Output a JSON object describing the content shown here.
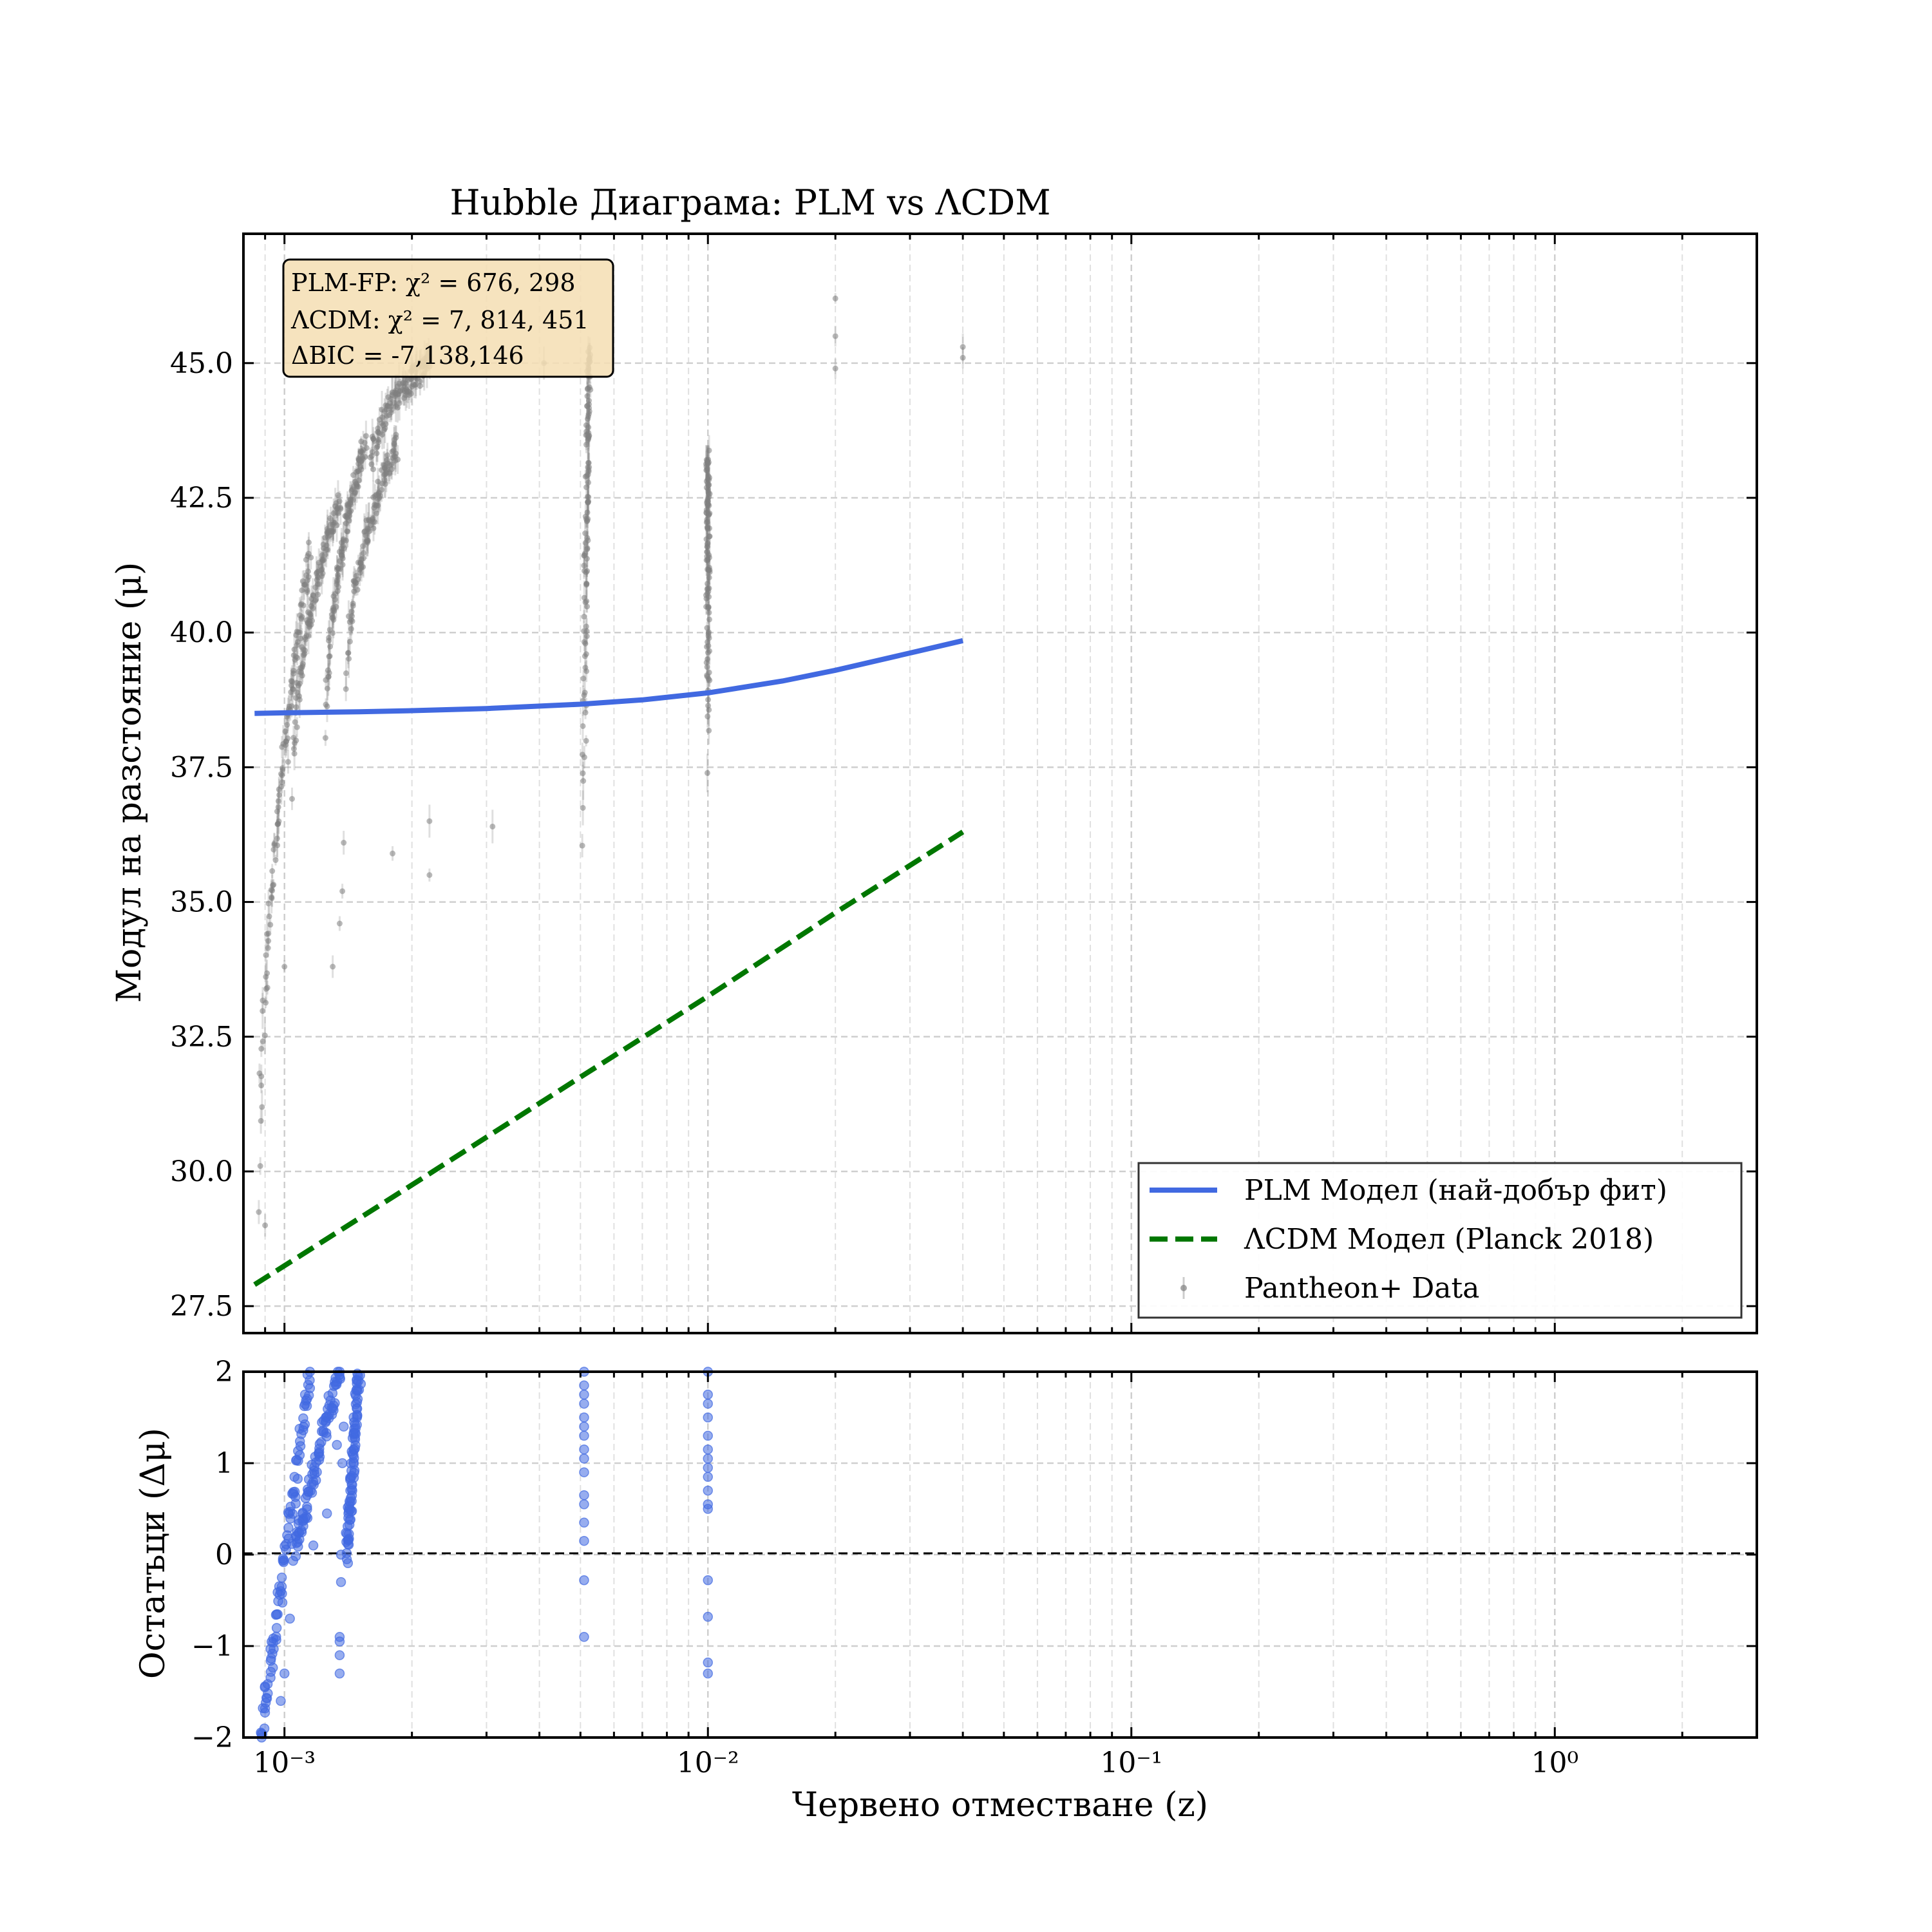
{
  "figure": {
    "title": "Hubble Диаграма: PLM vs ΛCDM",
    "stats_box": {
      "lines": [
        "PLM-FP: χ² = 676, 298",
        "ΛCDM: χ² = 7, 814, 451",
        "ΔBIC = -7,138,146"
      ]
    },
    "legend": {
      "placement": "lower-right",
      "entries": [
        "PLM Модел (най-добър фит)",
        "ΛCDM Модел (Planck 2018)",
        "Pantheon+ Data"
      ]
    }
  },
  "colors": {
    "plm": "#4169E1",
    "lcdm": "#007700",
    "data": "#808080",
    "residuals": "#4169E1",
    "stats_box_bg": "#F5DEB3"
  },
  "chart_data": [
    {
      "type": "line",
      "title": "Hubble Диаграма: PLM vs ΛCDM",
      "xlabel": "Червено отместване (z)",
      "ylabel": "Модул на разстояние (μ)",
      "xscale": "log",
      "xlim": [
        0.0008,
        3.0
      ],
      "ylim": [
        27.0,
        47.4
      ],
      "yticks": [
        "27.5",
        "30.0",
        "32.5",
        "35.0",
        "37.5",
        "40.0",
        "42.5",
        "45.0"
      ],
      "grid": true,
      "series": [
        {
          "name": "PLM Модел (най-добър фит)",
          "style": "solid",
          "x": [
            0.00085,
            0.001,
            0.0015,
            0.002,
            0.003,
            0.005,
            0.007,
            0.01,
            0.015,
            0.02,
            0.03,
            0.04
          ],
          "y": [
            38.5,
            38.51,
            38.53,
            38.55,
            38.59,
            38.67,
            38.75,
            38.88,
            39.1,
            39.3,
            39.62,
            39.85
          ]
        },
        {
          "name": "ΛCDM Модел (Planck 2018)",
          "style": "dashed",
          "x": [
            0.00085,
            0.001,
            0.002,
            0.005,
            0.01,
            0.02,
            0.04
          ],
          "y": [
            27.9,
            28.25,
            29.75,
            31.75,
            33.25,
            34.8,
            36.3
          ]
        },
        {
          "name": "Pantheon+ Data",
          "style": "errorbar-points",
          "clusters": [
            {
              "x_from": 0.00087,
              "x_to": 0.00115,
              "y_from": 29.0,
              "y_to": 41.5
            },
            {
              "x_from": 0.00105,
              "x_to": 0.00135,
              "y_from": 37.0,
              "y_to": 42.5
            },
            {
              "x_from": 0.00125,
              "x_to": 0.00155,
              "y_from": 38.0,
              "y_to": 43.5
            },
            {
              "x_from": 0.0014,
              "x_to": 0.00185,
              "y_from": 39.0,
              "y_to": 43.5
            },
            {
              "x_from": 0.0016,
              "x_to": 0.0022,
              "y_from": 43.0,
              "y_to": 45.0
            },
            {
              "x_from": 0.0051,
              "x_to": 0.00525,
              "y_from": 35.8,
              "y_to": 45.3
            },
            {
              "x_from": 0.01,
              "x_to": 0.01,
              "y_from": 37.5,
              "y_to": 43.3
            }
          ],
          "extra_points": [
            {
              "x": 0.0009,
              "y": 29.0
            },
            {
              "x": 0.001,
              "y": 33.8
            },
            {
              "x": 0.00102,
              "y": 37.6
            },
            {
              "x": 0.0013,
              "y": 33.8
            },
            {
              "x": 0.00135,
              "y": 34.6
            },
            {
              "x": 0.00137,
              "y": 35.2
            },
            {
              "x": 0.00138,
              "y": 36.1
            },
            {
              "x": 0.0018,
              "y": 35.9
            },
            {
              "x": 0.0022,
              "y": 36.5
            },
            {
              "x": 0.0022,
              "y": 35.5
            },
            {
              "x": 0.0031,
              "y": 36.4
            },
            {
              "x": 0.0041,
              "y": 45.0
            },
            {
              "x": 0.02,
              "y": 46.2
            },
            {
              "x": 0.02,
              "y": 45.5
            },
            {
              "x": 0.02,
              "y": 44.9
            },
            {
              "x": 0.04,
              "y": 45.3
            },
            {
              "x": 0.04,
              "y": 45.1
            }
          ]
        }
      ]
    },
    {
      "type": "scatter",
      "xlabel": "Червено отместване (z)",
      "ylabel": "Остатъци (Δμ)",
      "xscale": "log",
      "xlim": [
        0.0008,
        3.0
      ],
      "ylim": [
        -2.0,
        2.0
      ],
      "yticks": [
        "−2",
        "−1",
        "0",
        "1",
        "2"
      ],
      "xticks": [
        "10⁻³",
        "10⁻²",
        "10⁻¹",
        "10⁰"
      ],
      "reference_line": {
        "y": 0,
        "style": "dashed"
      },
      "grid": true,
      "series": [
        {
          "name": "residuals",
          "clusters": [
            {
              "x_from": 0.00088,
              "x_to": 0.00115,
              "y_from": -2.0,
              "y_to": 2.0
            },
            {
              "x_from": 0.00105,
              "x_to": 0.00135,
              "y_from": 0.0,
              "y_to": 2.0
            },
            {
              "x_from": 0.0014,
              "x_to": 0.0015,
              "y_from": 0.0,
              "y_to": 2.0
            }
          ],
          "points": [
            {
              "x": 0.001,
              "y": -1.3
            },
            {
              "x": 0.00098,
              "y": -1.6
            },
            {
              "x": 0.00103,
              "y": -0.7
            },
            {
              "x": 0.00126,
              "y": 0.45
            },
            {
              "x": 0.00133,
              "y": 1.2
            },
            {
              "x": 0.00135,
              "y": -0.9
            },
            {
              "x": 0.00135,
              "y": -0.95
            },
            {
              "x": 0.00135,
              "y": -1.1
            },
            {
              "x": 0.00135,
              "y": -1.3
            },
            {
              "x": 0.00136,
              "y": 0.0
            },
            {
              "x": 0.00136,
              "y": -0.3
            },
            {
              "x": 0.00137,
              "y": 1.0
            },
            {
              "x": 0.00138,
              "y": 1.4
            },
            {
              "x": 0.0013,
              "y": 1.6
            },
            {
              "x": 0.00117,
              "y": 0.1
            },
            {
              "x": 0.0051,
              "y": 2.0
            },
            {
              "x": 0.0051,
              "y": 1.85
            },
            {
              "x": 0.0051,
              "y": 1.75
            },
            {
              "x": 0.0051,
              "y": 1.65
            },
            {
              "x": 0.0051,
              "y": 1.5
            },
            {
              "x": 0.0051,
              "y": 1.4
            },
            {
              "x": 0.0051,
              "y": 1.3
            },
            {
              "x": 0.0051,
              "y": 1.15
            },
            {
              "x": 0.0051,
              "y": 1.05
            },
            {
              "x": 0.0051,
              "y": 0.9
            },
            {
              "x": 0.0051,
              "y": 0.65
            },
            {
              "x": 0.0051,
              "y": 0.55
            },
            {
              "x": 0.0051,
              "y": 0.35
            },
            {
              "x": 0.0051,
              "y": 0.15
            },
            {
              "x": 0.0051,
              "y": -0.28
            },
            {
              "x": 0.0051,
              "y": -0.9
            },
            {
              "x": 0.01,
              "y": 2.0
            },
            {
              "x": 0.01,
              "y": 1.75
            },
            {
              "x": 0.01,
              "y": 1.65
            },
            {
              "x": 0.01,
              "y": 1.5
            },
            {
              "x": 0.01,
              "y": 1.3
            },
            {
              "x": 0.01,
              "y": 1.15
            },
            {
              "x": 0.01,
              "y": 1.05
            },
            {
              "x": 0.01,
              "y": 0.95
            },
            {
              "x": 0.01,
              "y": 0.85
            },
            {
              "x": 0.01,
              "y": 0.7
            },
            {
              "x": 0.01,
              "y": 0.55
            },
            {
              "x": 0.01,
              "y": 0.5
            },
            {
              "x": 0.01,
              "y": -0.28
            },
            {
              "x": 0.01,
              "y": -0.68
            },
            {
              "x": 0.01,
              "y": -1.18
            },
            {
              "x": 0.01,
              "y": -1.3
            }
          ]
        }
      ]
    }
  ]
}
